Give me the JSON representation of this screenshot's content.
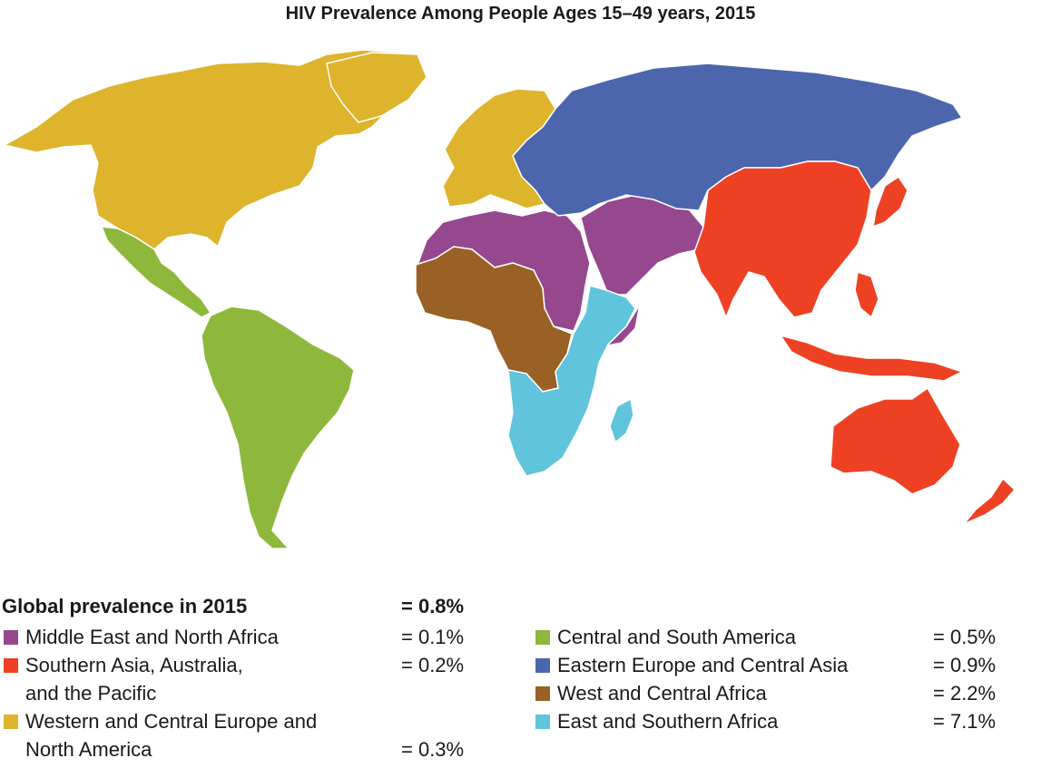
{
  "title": "HIV Prevalence Among People Ages 15–49 years, 2015",
  "global": {
    "label": "Global prevalence in 2015",
    "value": "= 0.8%"
  },
  "colors": {
    "middle_east_north_africa": "#96488f",
    "southern_asia_australia_pacific": "#ee4124",
    "western_central_europe_north_america": "#ddb42b",
    "central_south_america": "#8db83c",
    "eastern_europe_central_asia": "#4b66ad",
    "west_central_africa": "#996125",
    "east_southern_africa": "#60c4dc"
  },
  "legend": {
    "left": [
      {
        "line1": "Middle East and North Africa",
        "line2": "",
        "value": "= 0.1%",
        "color": "#96488f"
      },
      {
        "line1": "Southern Asia, Australia,",
        "line2": "and the Pacific",
        "value": "= 0.2%",
        "color": "#ee4124"
      },
      {
        "line1": "Western and Central Europe and",
        "line2": "North America",
        "value": "= 0.3%",
        "color": "#ddb42b"
      }
    ],
    "right": [
      {
        "line1": "Central and South America",
        "value": "= 0.5%",
        "color": "#8db83c"
      },
      {
        "line1": "Eastern Europe and Central Asia",
        "value": "= 0.9%",
        "color": "#4b66ad"
      },
      {
        "line1": "West and Central Africa",
        "value": "= 2.2%",
        "color": "#996125"
      },
      {
        "line1": "East and Southern Africa",
        "value": "= 7.1%",
        "color": "#60c4dc"
      }
    ]
  }
}
